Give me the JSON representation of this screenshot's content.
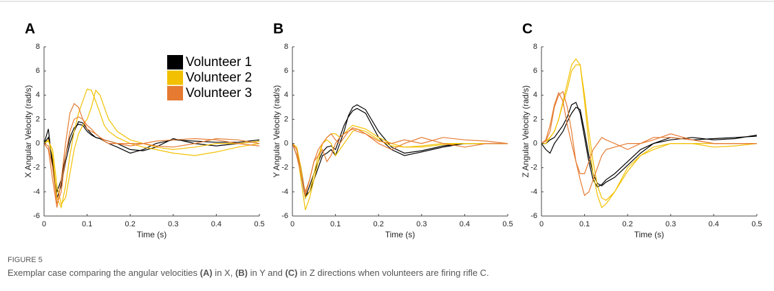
{
  "chart_data": [
    {
      "type": "line",
      "panel": "A",
      "ylabel": "X Angular Velocity (rad/s)",
      "xlabel": "Time (s)",
      "xlim": [
        0,
        0.5
      ],
      "ylim": [
        -6,
        8
      ],
      "xticks": [
        0,
        0.1,
        0.2,
        0.3,
        0.4,
        0.5
      ],
      "yticks": [
        -6,
        -4,
        -2,
        0,
        2,
        4,
        6,
        8
      ],
      "legend": "upper right",
      "x": [
        0,
        0.01,
        0.02,
        0.03,
        0.04,
        0.05,
        0.06,
        0.07,
        0.08,
        0.09,
        0.1,
        0.11,
        0.12,
        0.13,
        0.14,
        0.15,
        0.17,
        0.2,
        0.23,
        0.26,
        0.3,
        0.35,
        0.4,
        0.45,
        0.5
      ],
      "series": [
        {
          "name": "Volunteer 1",
          "color": "#000000",
          "trials": [
            [
              0,
              1.2,
              -2,
              -4,
              -3,
              -1,
              0.5,
              1.3,
              1.6,
              1.5,
              1,
              0.7,
              0.5,
              0.4,
              0.3,
              0.2,
              0,
              -0.5,
              -0.6,
              -0.3,
              0.4,
              0,
              -0.2,
              0,
              0.2
            ],
            [
              0,
              0.5,
              -1.5,
              -4.5,
              -3.5,
              -1.5,
              0,
              1,
              1.8,
              1.7,
              1.2,
              0.8,
              0.5,
              0.4,
              0.2,
              0,
              -0.3,
              -0.8,
              -0.5,
              0,
              0.3,
              0.2,
              0.1,
              0.1,
              0.3
            ]
          ]
        },
        {
          "name": "Volunteer 2",
          "color": "#f2c000",
          "trials": [
            [
              0,
              0.3,
              -1,
              -4.5,
              -5.3,
              -3.5,
              -1,
              1,
              2.5,
              3.5,
              4.5,
              4.4,
              3.5,
              2.5,
              1.5,
              1,
              0.5,
              0,
              -0.3,
              -0.5,
              -0.8,
              -1,
              -0.7,
              -0.3,
              0
            ],
            [
              0,
              0.2,
              -0.5,
              -3.5,
              -5,
              -4.5,
              -2.5,
              -0.5,
              0.8,
              1.5,
              2,
              3,
              4.4,
              4,
              3,
              2,
              1,
              0.3,
              0,
              -0.3,
              -0.5,
              -0.3,
              0,
              0,
              0.2
            ]
          ]
        },
        {
          "name": "Volunteer 3",
          "color": "#e57a30",
          "trials": [
            [
              0,
              -0.5,
              -3,
              -5.3,
              -3,
              0,
              2.5,
              3.3,
              3,
              2,
              1.2,
              1,
              0.8,
              0.5,
              0.2,
              0,
              0,
              0,
              0,
              -0.2,
              -0.3,
              0,
              0.4,
              0.3,
              0
            ],
            [
              0,
              -0.2,
              -2,
              -5,
              -4,
              -1,
              1,
              2,
              2.2,
              2,
              1.5,
              1.2,
              0.8,
              0.5,
              0.3,
              0.2,
              0,
              -0.2,
              0,
              0.2,
              0.3,
              0.4,
              0.3,
              0,
              -0.2
            ]
          ]
        }
      ]
    },
    {
      "type": "line",
      "panel": "B",
      "ylabel": "Y Angular Velocity (rad/s)",
      "xlabel": "Time (s)",
      "xlim": [
        0,
        0.5
      ],
      "ylim": [
        -6,
        8
      ],
      "xticks": [
        0,
        0.1,
        0.2,
        0.3,
        0.4,
        0.5
      ],
      "yticks": [
        -6,
        -4,
        -2,
        0,
        2,
        4,
        6,
        8
      ],
      "x": [
        0,
        0.01,
        0.02,
        0.03,
        0.04,
        0.05,
        0.06,
        0.07,
        0.08,
        0.09,
        0.1,
        0.11,
        0.12,
        0.13,
        0.14,
        0.15,
        0.17,
        0.2,
        0.23,
        0.26,
        0.3,
        0.35,
        0.4,
        0.45,
        0.5
      ],
      "series": [
        {
          "color": "#000000",
          "trials": [
            [
              0,
              -0.5,
              -2,
              -4.3,
              -4,
              -3,
              -2,
              -1,
              -0.8,
              -0.5,
              -1,
              0,
              1,
              2.3,
              3,
              3.2,
              2.8,
              1,
              -0.3,
              -0.8,
              -0.6,
              -0.2,
              0,
              0,
              0
            ],
            [
              0,
              -1,
              -2.5,
              -4.5,
              -3.5,
              -2.5,
              -1.5,
              -0.7,
              -0.3,
              -0.2,
              -0.5,
              0.5,
              1.5,
              2.2,
              2.7,
              2.9,
              2.5,
              0.5,
              -0.5,
              -1,
              -0.7,
              -0.3,
              0,
              0,
              0
            ]
          ]
        },
        {
          "color": "#f2c000",
          "trials": [
            [
              0,
              -0.5,
              -3,
              -5.5,
              -4.5,
              -3,
              -1.5,
              0,
              0.5,
              0.8,
              0.8,
              0.5,
              0.8,
              1.2,
              1.5,
              1.4,
              1.2,
              0.5,
              0,
              -0.3,
              -0.3,
              -0.1,
              0,
              0,
              0
            ],
            [
              0,
              -0.3,
              -2,
              -4.5,
              -4,
              -2.5,
              -1,
              0,
              0.3,
              0,
              -1,
              -0.5,
              0,
              0.5,
              1,
              1.2,
              1,
              0.3,
              -0.2,
              -0.3,
              -0.2,
              0,
              0,
              0,
              0
            ]
          ]
        },
        {
          "color": "#e57a30",
          "trials": [
            [
              0,
              -0.5,
              -2.5,
              -4.3,
              -3,
              -1.5,
              -0.5,
              0,
              0.5,
              0.8,
              0.3,
              0,
              0.5,
              1,
              1.3,
              1.2,
              0.8,
              0.2,
              0,
              0.3,
              0,
              0.5,
              0.3,
              0.2,
              0
            ],
            [
              0,
              -1,
              -2.5,
              -4,
              -3,
              -1.5,
              -1,
              -0.5,
              -1.5,
              -1,
              0,
              0.5,
              0.8,
              1,
              1.2,
              1,
              0.8,
              0,
              -0.5,
              0,
              0.5,
              0,
              -0.3,
              0,
              0
            ]
          ]
        }
      ]
    },
    {
      "type": "line",
      "panel": "C",
      "ylabel": "Z Angular Velocity (rad/s)",
      "xlabel": "Time (s)",
      "xlim": [
        0,
        0.5
      ],
      "ylim": [
        -6,
        8
      ],
      "xticks": [
        0,
        0.1,
        0.2,
        0.3,
        0.4,
        0.5
      ],
      "yticks": [
        -6,
        -4,
        -2,
        0,
        2,
        4,
        6,
        8
      ],
      "x": [
        0,
        0.01,
        0.02,
        0.03,
        0.04,
        0.05,
        0.06,
        0.07,
        0.08,
        0.09,
        0.1,
        0.11,
        0.12,
        0.13,
        0.14,
        0.15,
        0.17,
        0.2,
        0.23,
        0.26,
        0.3,
        0.35,
        0.4,
        0.45,
        0.5
      ],
      "series": [
        {
          "color": "#000000",
          "trials": [
            [
              0,
              0,
              0.3,
              0.5,
              1,
              1.5,
              2.2,
              3.2,
              3.4,
              2.5,
              0.5,
              -1.5,
              -3,
              -3.6,
              -3.4,
              -3,
              -2.5,
              -1.5,
              -0.5,
              0,
              0.5,
              0.3,
              0.4,
              0.5,
              0.6
            ],
            [
              0,
              -0.5,
              -0.8,
              0,
              0.5,
              1,
              1.8,
              2.5,
              3,
              2.8,
              1,
              -1,
              -2.5,
              -3.3,
              -3.5,
              -3.2,
              -2.8,
              -1.8,
              -0.8,
              0,
              0.3,
              0.5,
              0.3,
              0.4,
              0.7
            ]
          ]
        },
        {
          "color": "#f2c000",
          "trials": [
            [
              0,
              0,
              0.5,
              1,
              2,
              3.5,
              5,
              6.5,
              7,
              6.5,
              3.5,
              0,
              -2.5,
              -4.3,
              -5.3,
              -5,
              -4,
              -2,
              -1,
              -0.5,
              0,
              0,
              -0.3,
              -0.2,
              0
            ],
            [
              0,
              0.2,
              0.5,
              1,
              2,
              3.3,
              4.5,
              6,
              6.5,
              6.5,
              4,
              1,
              -1.5,
              -3.5,
              -4.5,
              -4.7,
              -4,
              -2.3,
              -1,
              -0.3,
              0,
              0,
              0,
              0,
              0
            ]
          ]
        },
        {
          "color": "#e57a30",
          "trials": [
            [
              0,
              0.2,
              1,
              3,
              4,
              4.3,
              3,
              1,
              -1.5,
              -3,
              -4.3,
              -4,
              -3,
              -2,
              -1,
              -0.5,
              -0.3,
              0,
              0,
              0.3,
              0.8,
              0.3,
              0,
              0,
              0
            ],
            [
              0,
              0.3,
              1.5,
              3.2,
              4.2,
              3.5,
              1.5,
              0,
              -1.5,
              -2.5,
              -2.5,
              -1.5,
              -0.5,
              0,
              0.5,
              0.3,
              0,
              -0.5,
              0,
              0.5,
              0.5,
              0.3,
              0,
              0,
              0
            ]
          ]
        }
      ]
    }
  ],
  "figure": {
    "label": "FIGURE 5",
    "caption": [
      "Exemplar case comparing the angular velocities ",
      "(A)",
      " in X, ",
      "(B)",
      " in Y and ",
      "(C)",
      " in Z directions when volunteers are firing rifle C."
    ]
  }
}
